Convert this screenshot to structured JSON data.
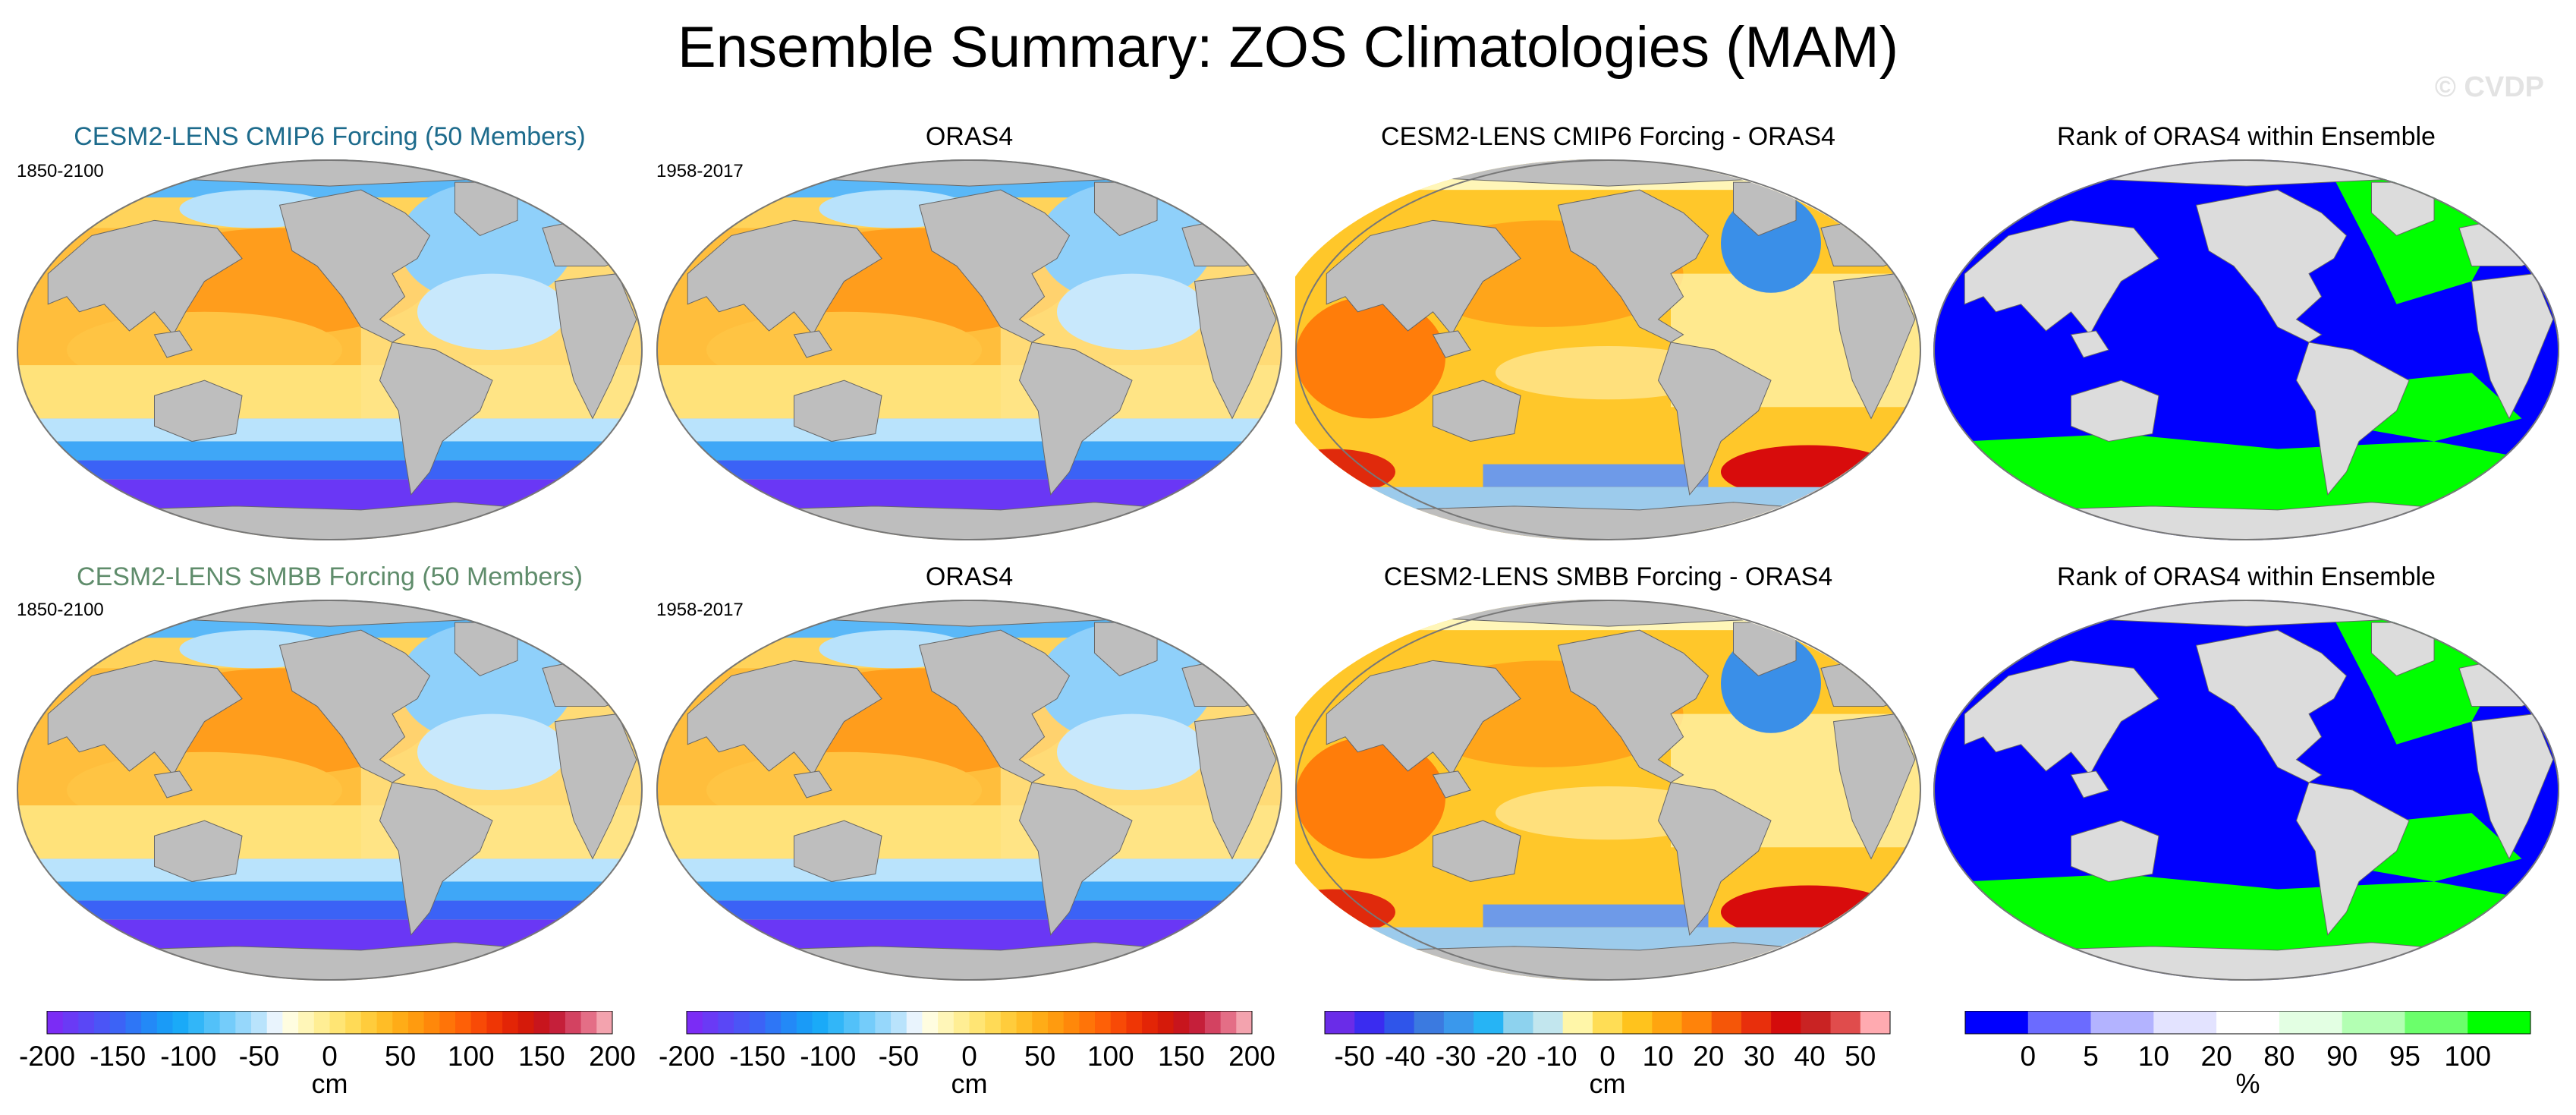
{
  "title": "Ensemble Summary: ZOS Climatologies (MAM)",
  "watermark": "© CVDP",
  "colors": {
    "land": "#bebebe",
    "rank_land": "#dcdcdc",
    "title_cmip6": "#1d6b8c",
    "title_smbb": "#5f8c6b",
    "rank_blue": "#0000ff",
    "rank_green": "#00ff00"
  },
  "rows": [
    {
      "panels": [
        {
          "title": "CESM2-LENS CMIP6 Forcing (50 Members)",
          "period": "1850-2100",
          "kind": "clim"
        },
        {
          "title": "ORAS4",
          "period": "1958-2017",
          "kind": "clim"
        },
        {
          "title": "CESM2-LENS CMIP6 Forcing - ORAS4",
          "period": "",
          "kind": "diff"
        },
        {
          "title": "Rank of ORAS4 within Ensemble",
          "period": "",
          "kind": "rank"
        }
      ]
    },
    {
      "panels": [
        {
          "title": "CESM2-LENS SMBB Forcing (50 Members)",
          "period": "1850-2100",
          "kind": "clim"
        },
        {
          "title": "ORAS4",
          "period": "1958-2017",
          "kind": "clim"
        },
        {
          "title": "CESM2-LENS SMBB Forcing - ORAS4",
          "period": "",
          "kind": "diff"
        },
        {
          "title": "Rank of ORAS4 within Ensemble",
          "period": "",
          "kind": "rank"
        }
      ]
    }
  ],
  "colorbars": [
    {
      "name": "clim-1",
      "unit": "cm",
      "ticks": [
        "-200",
        "-150",
        "-100",
        "-50",
        "0",
        "50",
        "100",
        "150",
        "200"
      ],
      "colors": [
        "#7b2cf5",
        "#6a3af5",
        "#5a47f6",
        "#4b55f6",
        "#3c63f6",
        "#2e76f6",
        "#2389f7",
        "#1a9bf7",
        "#1aaaf8",
        "#32b6f8",
        "#52c1f9",
        "#74ccfa",
        "#96d7fb",
        "#b9e3fc",
        "#e9f4fd",
        "#fffde0",
        "#fff6b8",
        "#ffee94",
        "#ffe574",
        "#ffda56",
        "#ffcc3c",
        "#ffbd26",
        "#ffac17",
        "#ff9b0f",
        "#ff880a",
        "#ff7408",
        "#fe6007",
        "#f84a06",
        "#ef3605",
        "#e32506",
        "#d51a0a",
        "#c8151d",
        "#c51f3a",
        "#d34261",
        "#e46e86",
        "#f3a3ae"
      ]
    },
    {
      "name": "clim-2",
      "unit": "cm",
      "ticks": [
        "-200",
        "-150",
        "-100",
        "-50",
        "0",
        "50",
        "100",
        "150",
        "200"
      ],
      "colors": [
        "#7b2cf5",
        "#6a3af5",
        "#5a47f6",
        "#4b55f6",
        "#3c63f6",
        "#2e76f6",
        "#2389f7",
        "#1a9bf7",
        "#1aaaf8",
        "#32b6f8",
        "#52c1f9",
        "#74ccfa",
        "#96d7fb",
        "#b9e3fc",
        "#e9f4fd",
        "#fffde0",
        "#fff6b8",
        "#ffee94",
        "#ffe574",
        "#ffda56",
        "#ffcc3c",
        "#ffbd26",
        "#ffac17",
        "#ff9b0f",
        "#ff880a",
        "#ff7408",
        "#fe6007",
        "#f84a06",
        "#ef3605",
        "#e32506",
        "#d51a0a",
        "#c8151d",
        "#c51f3a",
        "#d34261",
        "#e46e86",
        "#f3a3ae"
      ]
    },
    {
      "name": "diff",
      "unit": "cm",
      "ticks": [
        "-50",
        "-40",
        "-30",
        "-20",
        "-10",
        "0",
        "10",
        "20",
        "30",
        "40",
        "50"
      ],
      "colors": [
        "#6a2ce8",
        "#3a2cf0",
        "#2f55ea",
        "#3b7ae0",
        "#3a98ec",
        "#26b4f5",
        "#8dd2ee",
        "#c2e6ee",
        "#fff6a8",
        "#ffdd55",
        "#ffc31d",
        "#ffa50f",
        "#ff830a",
        "#f55608",
        "#e82f0c",
        "#d40c0c",
        "#c92323",
        "#e04c4c",
        "#ffaab0"
      ]
    },
    {
      "name": "rank",
      "unit": "%",
      "ticks": [
        "0",
        "5",
        "10",
        "20",
        "80",
        "90",
        "95",
        "100"
      ],
      "colors": [
        "#0000ff",
        "#6b6bff",
        "#b3b3ff",
        "#e3e3ff",
        "#ffffff",
        "#e3ffe3",
        "#b3ffb3",
        "#6bff6b",
        "#00ff00"
      ]
    }
  ]
}
